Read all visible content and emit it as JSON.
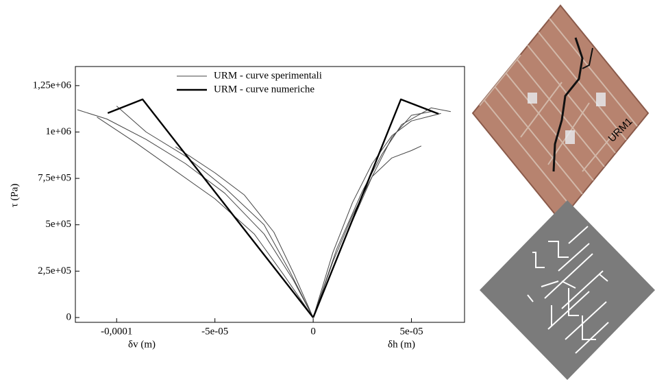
{
  "chart_data": {
    "type": "line",
    "y_label": "τ (Pa)",
    "x_label_left": "δv (m)",
    "x_label_right": "δh (m)",
    "photo_label": "URM1",
    "xlim": [
      -0.000121,
      7.7e-05
    ],
    "ylim": [
      -26000,
      1353000
    ],
    "xticks": [
      {
        "value": -0.0001,
        "label": "-0,0001"
      },
      {
        "value": -5e-05,
        "label": "-5e-05"
      },
      0,
      {
        "value": 5e-05,
        "label": "5e-05"
      }
    ],
    "yticks": [
      0,
      {
        "value": 250000,
        "label": "2,5e+05"
      },
      {
        "value": 500000,
        "label": "5e+05"
      },
      {
        "value": 750000,
        "label": "7,5e+05"
      },
      {
        "value": 1000000,
        "label": "1e+06"
      },
      {
        "value": 1250000,
        "label": "1,25e+06"
      }
    ],
    "series": [
      {
        "name": "URM - curve sperimentali",
        "color": "#444444",
        "width": 1,
        "curves": [
          {
            "x": [
              0,
              -1e-05,
              -2.5e-05,
              -4.5e-05,
              -6.5e-05,
              -8.5e-05,
              -0.000105,
              -0.00012
            ],
            "values": [
              0,
              200000,
              450000,
              670000,
              830000,
              960000,
              1070000,
              1120000
            ]
          },
          {
            "x": [
              0,
              -1.5e-05,
              -3e-05,
              -5e-05,
              -7e-05,
              -9e-05,
              -0.00011
            ],
            "values": [
              0,
              230000,
              450000,
              640000,
              790000,
              940000,
              1080000
            ]
          },
          {
            "x": [
              0,
              -1e-05,
              -2e-05,
              -3.5e-05,
              -5e-05,
              -7e-05
            ],
            "values": [
              0,
              240000,
              460000,
              660000,
              780000,
              920000
            ]
          },
          {
            "x": [
              0,
              -1.2e-05,
              -2.5e-05,
              -4.5e-05,
              -6.5e-05,
              -8.5e-05,
              -0.0001
            ],
            "values": [
              0,
              250000,
              500000,
              700000,
              870000,
              1000000,
              1140000
            ]
          },
          {
            "x": [
              0,
              1e-05,
              2e-05,
              3e-05,
              4e-05,
              5e-05,
              5.5e-05
            ],
            "values": [
              0,
              300000,
              550000,
              760000,
              860000,
              900000,
              925000
            ]
          },
          {
            "x": [
              0,
              1e-05,
              2e-05,
              3e-05,
              4e-05,
              5e-05,
              6.5e-05
            ],
            "values": [
              0,
              350000,
              620000,
              830000,
              980000,
              1060000,
              1100000
            ]
          },
          {
            "x": [
              0,
              1.2e-05,
              2.5e-05,
              3.5e-05,
              4.5e-05,
              6e-05,
              7e-05
            ],
            "values": [
              0,
              370000,
              680000,
              880000,
              1040000,
              1130000,
              1110000
            ]
          },
          {
            "x": [
              0,
              1.5e-05,
              3e-05,
              4e-05,
              5e-05,
              6e-05
            ],
            "values": [
              0,
              400000,
              760000,
              970000,
              1090000,
              1110000
            ]
          }
        ]
      },
      {
        "name": "URM - curve numeriche",
        "color": "#000000",
        "width": 2.4,
        "curves": [
          {
            "x": [
              0,
              -8.68e-05,
              -0.0001045
            ],
            "values": [
              0,
              1176000,
              1102000
            ]
          },
          {
            "x": [
              0,
              4.46e-05,
              6.38e-05
            ],
            "values": [
              0,
              1176000,
              1098000
            ]
          }
        ]
      }
    ]
  }
}
